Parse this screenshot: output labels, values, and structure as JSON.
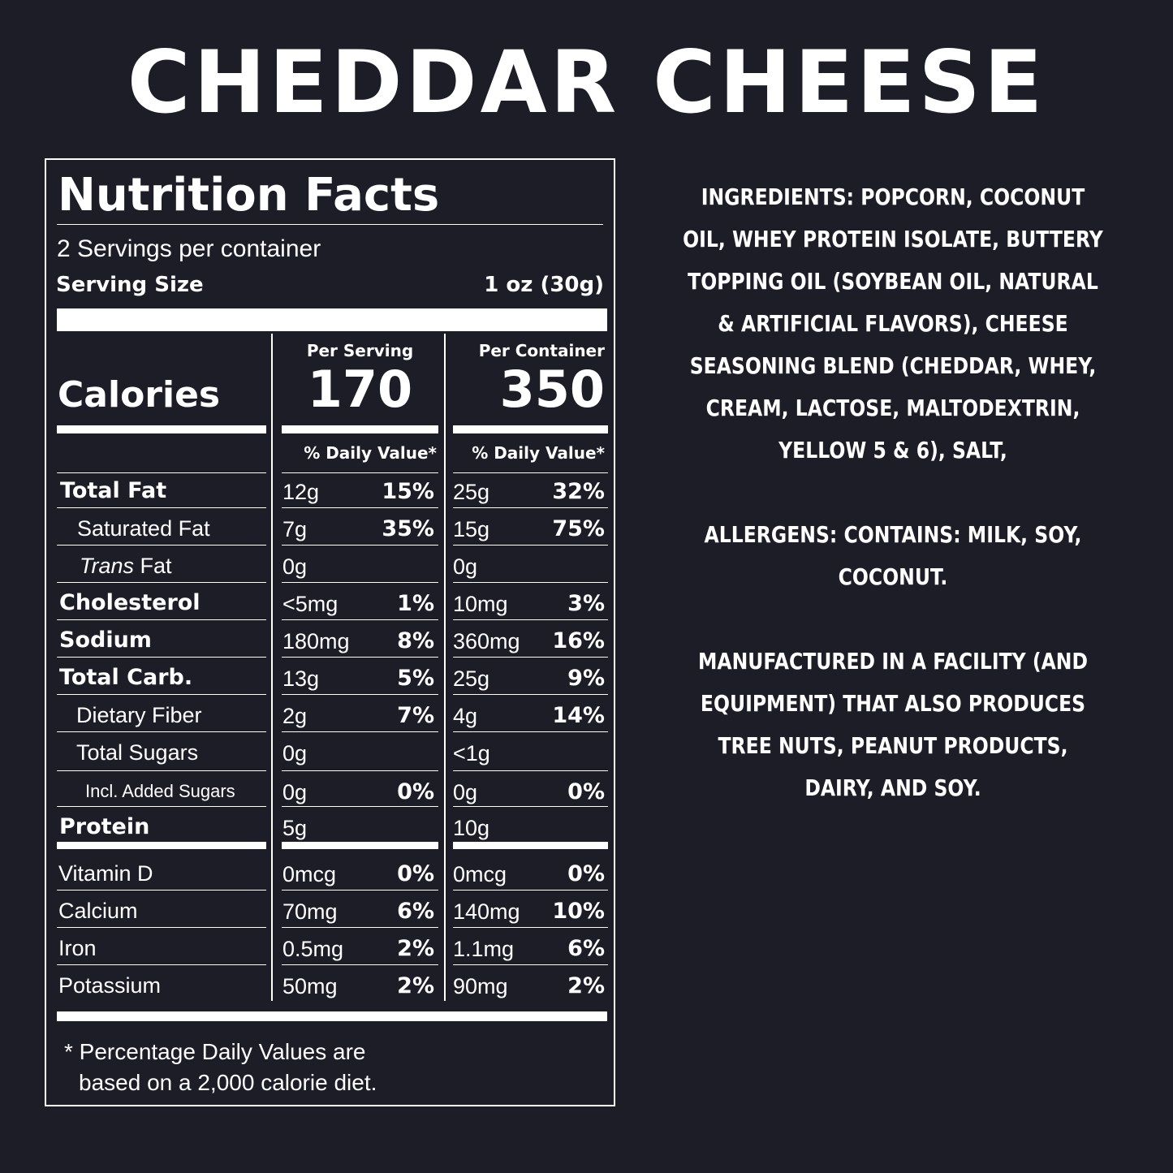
{
  "title": "CHEDDAR CHEESE",
  "nutrition": {
    "heading": "Nutrition Facts",
    "servings": "2 Servings per container",
    "serving_size_label": "Serving Size",
    "serving_size_value": "1 oz (30g)",
    "calories_label": "Calories",
    "per_serving_label": "Per Serving",
    "per_container_label": "Per Container",
    "calories_serving": "170",
    "calories_container": "350",
    "dv_label": "% Daily Value*",
    "rows": [
      {
        "name": "Total Fat",
        "s_amt": "12g",
        "s_dv": "15%",
        "c_amt": "25g",
        "c_dv": "32%"
      },
      {
        "name": "Saturated Fat",
        "s_amt": "7g",
        "s_dv": "35%",
        "c_amt": "15g",
        "c_dv": "75%"
      },
      {
        "name_italic": "Trans",
        "name": "Fat",
        "s_amt": "0g",
        "s_dv": "",
        "c_amt": "0g",
        "c_dv": ""
      },
      {
        "name": "Cholesterol",
        "s_amt": "<5mg",
        "s_dv": "1%",
        "c_amt": "10mg",
        "c_dv": "3%"
      },
      {
        "name": "Sodium",
        "s_amt": "180mg",
        "s_dv": "8%",
        "c_amt": "360mg",
        "c_dv": "16%"
      },
      {
        "name": "Total Carb.",
        "s_amt": "13g",
        "s_dv": "5%",
        "c_amt": "25g",
        "c_dv": "9%"
      },
      {
        "name": "Dietary Fiber",
        "s_amt": "2g",
        "s_dv": "7%",
        "c_amt": "4g",
        "c_dv": "14%"
      },
      {
        "name": "Total Sugars",
        "s_amt": "0g",
        "s_dv": "",
        "c_amt": "<1g",
        "c_dv": ""
      },
      {
        "name": "Incl. Added Sugars",
        "s_amt": "0g",
        "s_dv": "0%",
        "c_amt": "0g",
        "c_dv": "0%"
      },
      {
        "name": "Protein",
        "s_amt": "5g",
        "s_dv": "",
        "c_amt": "10g",
        "c_dv": ""
      }
    ],
    "vitamins": [
      {
        "name": "Vitamin D",
        "s_amt": "0mcg",
        "s_dv": "0%",
        "c_amt": "0mcg",
        "c_dv": "0%"
      },
      {
        "name": "Calcium",
        "s_amt": "70mg",
        "s_dv": "6%",
        "c_amt": "140mg",
        "c_dv": "10%"
      },
      {
        "name": "Iron",
        "s_amt": "0.5mg",
        "s_dv": "2%",
        "c_amt": "1.1mg",
        "c_dv": "6%"
      },
      {
        "name": "Potassium",
        "s_amt": "50mg",
        "s_dv": "2%",
        "c_amt": "90mg",
        "c_dv": "2%"
      }
    ],
    "footnote_line1": "* Percentage Daily Values are",
    "footnote_line2": "based on a 2,000 calorie diet."
  },
  "ingredients": "INGREDIENTS: POPCORN, COCONUT OIL, WHEY PROTEIN ISOLATE, BUTTERY TOPPING OIL (SOYBEAN OIL, NATURAL & ARTIFICIAL FLAVORS), CHEESE SEASONING BLEND (CHEDDAR, WHEY, CREAM, LACTOSE, MALTODEXTRIN, YELLOW 5 & 6), SALT,",
  "allergens": "ALLERGENS: CONTAINS: MILK, SOY, COCONUT.",
  "facility": "MANUFACTURED IN A FACILITY (AND EQUIPMENT) THAT ALSO PRODUCES TREE NUTS, PEANUT PRODUCTS, DAIRY, AND SOY."
}
